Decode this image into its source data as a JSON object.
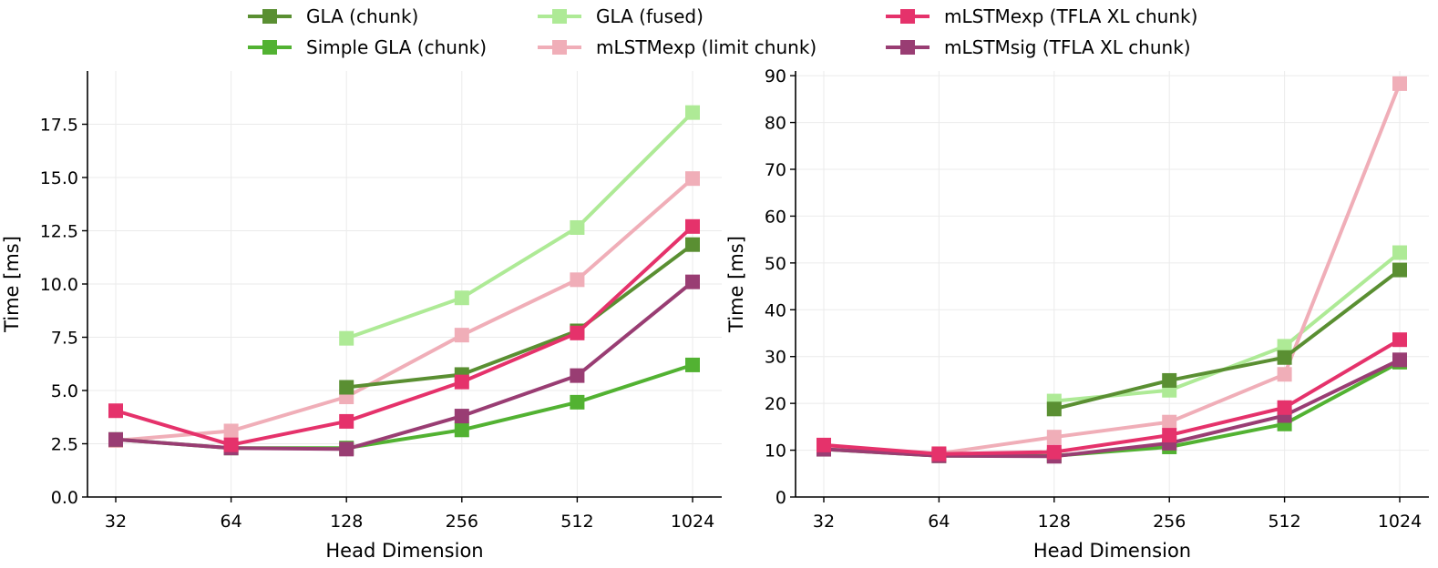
{
  "legend": [
    {
      "name": "GLA (chunk)",
      "color": "#5a8f32"
    },
    {
      "name": "GLA (fused)",
      "color": "#aeea96"
    },
    {
      "name": "mLSTMexp (TFLA XL chunk)",
      "color": "#e5326b"
    },
    {
      "name": "Simple GLA (chunk)",
      "color": "#52b232"
    },
    {
      "name": "mLSTMexp (limit chunk)",
      "color": "#f0aeb8"
    },
    {
      "name": "mLSTMsig (TFLA XL chunk)",
      "color": "#993d73"
    }
  ],
  "chart_data": [
    {
      "type": "line",
      "title": "",
      "xlabel": "Head Dimension",
      "ylabel": "Time [ms]",
      "categories": [
        "32",
        "64",
        "128",
        "256",
        "512",
        "1024"
      ],
      "ylim": [
        0,
        20
      ],
      "yticks": [
        "0.0",
        "2.5",
        "5.0",
        "7.5",
        "10.0",
        "12.5",
        "15.0",
        "17.5"
      ],
      "ytick_values": [
        0,
        2.5,
        5,
        7.5,
        10,
        12.5,
        15,
        17.5
      ],
      "grid": true,
      "series": [
        {
          "name": "GLA (fused)",
          "color": "#aeea96",
          "values": [
            null,
            null,
            7.45,
            9.35,
            12.65,
            18.05
          ]
        },
        {
          "name": "mLSTMexp (limit chunk)",
          "color": "#f0aeb8",
          "values": [
            2.65,
            3.1,
            4.7,
            7.6,
            10.2,
            14.95
          ]
        },
        {
          "name": "GLA (chunk)",
          "color": "#5a8f32",
          "values": [
            null,
            null,
            5.15,
            5.75,
            7.8,
            11.85
          ]
        },
        {
          "name": "Simple GLA (chunk)",
          "color": "#52b232",
          "values": [
            2.7,
            2.3,
            2.3,
            3.15,
            4.45,
            6.2
          ]
        },
        {
          "name": "mLSTMsig (TFLA XL chunk)",
          "color": "#993d73",
          "values": [
            2.7,
            2.3,
            2.25,
            3.8,
            5.7,
            10.1
          ]
        },
        {
          "name": "mLSTMexp (TFLA XL chunk)",
          "color": "#e5326b",
          "values": [
            4.05,
            2.45,
            3.55,
            5.4,
            7.7,
            12.7
          ]
        }
      ]
    },
    {
      "type": "line",
      "title": "",
      "xlabel": "Head Dimension",
      "ylabel": "Time [ms]",
      "categories": [
        "32",
        "64",
        "128",
        "256",
        "512",
        "1024"
      ],
      "ylim": [
        0,
        91
      ],
      "yticks": [
        "0",
        "10",
        "20",
        "30",
        "40",
        "50",
        "60",
        "70",
        "80",
        "90"
      ],
      "ytick_values": [
        0,
        10,
        20,
        30,
        40,
        50,
        60,
        70,
        80,
        90
      ],
      "grid": true,
      "series": [
        {
          "name": "GLA (fused)",
          "color": "#aeea96",
          "values": [
            null,
            null,
            20.5,
            22.8,
            32.2,
            52.2
          ]
        },
        {
          "name": "mLSTMexp (limit chunk)",
          "color": "#f0aeb8",
          "values": [
            10.5,
            9.3,
            12.8,
            16.0,
            26.2,
            88.3
          ]
        },
        {
          "name": "GLA (chunk)",
          "color": "#5a8f32",
          "values": [
            null,
            null,
            18.8,
            24.9,
            29.8,
            48.5
          ]
        },
        {
          "name": "Simple GLA (chunk)",
          "color": "#52b232",
          "values": [
            10.2,
            8.8,
            8.8,
            10.7,
            15.6,
            28.8
          ]
        },
        {
          "name": "mLSTMsig (TFLA XL chunk)",
          "color": "#993d73",
          "values": [
            10.2,
            8.8,
            8.7,
            11.5,
            17.4,
            29.3
          ]
        },
        {
          "name": "mLSTMexp (TFLA XL chunk)",
          "color": "#e5326b",
          "values": [
            11.1,
            9.2,
            9.6,
            13.2,
            19.1,
            33.6
          ]
        }
      ]
    }
  ]
}
